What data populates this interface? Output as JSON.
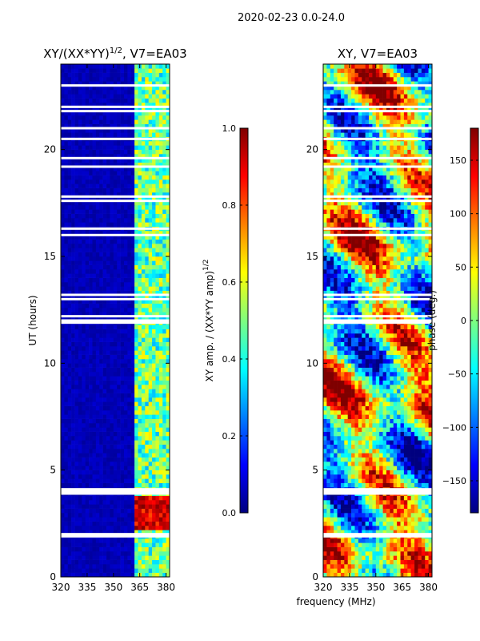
{
  "figure": {
    "suptitle": "2020-02-23 0.0-24.0",
    "xlabel_shared": "frequency (MHz)"
  },
  "colormap": [
    "#00007f",
    "#0000ff",
    "#007fff",
    "#00ffff",
    "#7fff7f",
    "#ffff00",
    "#ff7f00",
    "#ff0000",
    "#7f0000"
  ],
  "chart_data": [
    {
      "type": "heatmap",
      "title": "XY/(XX*YY)^{1/2}, V7=EA03",
      "title_prefix": "XY/(XX*YY)",
      "title_sup": "1/2",
      "title_suffix": ", V7=EA03",
      "xlabel": "",
      "ylabel": "UT (hours)",
      "xlim": [
        320,
        382
      ],
      "ylim": [
        0,
        24
      ],
      "xticks": [
        320,
        335,
        350,
        365,
        380
      ],
      "yticks": [
        0,
        5,
        10,
        15,
        20
      ],
      "colorbar": {
        "label": "XY amp. / (XX*YY amp)^{1/2}",
        "label_prefix": "XY amp. / (XX*YY amp)",
        "label_sup": "1/2",
        "range": [
          0.0,
          1.0
        ],
        "ticks": [
          "0.0",
          "0.2",
          "0.4",
          "0.6",
          "0.8",
          "1.0"
        ]
      },
      "gap_hours": [
        1.9,
        2.0,
        3.9,
        4.0,
        4.1,
        11.9,
        12.0,
        12.2,
        13.0,
        13.2,
        16.0,
        16.3,
        17.6,
        17.8,
        19.2,
        19.6,
        20.5,
        21.0,
        21.8,
        22.0,
        23.0
      ],
      "bright_channels_MHz": [
        363,
        366,
        369,
        372,
        375,
        378,
        380
      ],
      "high_value_band_hours": [
        2.3,
        3.8
      ]
    },
    {
      "type": "heatmap",
      "title": "XY, V7=EA03",
      "xlabel": "",
      "ylabel": "",
      "xlim": [
        320,
        382
      ],
      "ylim": [
        0,
        24
      ],
      "xticks": [
        320,
        335,
        350,
        365,
        380
      ],
      "yticks": [
        0,
        5,
        10,
        15,
        20
      ],
      "colorbar": {
        "label": "phase (deg.)",
        "range": [
          -180,
          180
        ],
        "ticks": [
          "150",
          "100",
          "50",
          "0",
          "−50",
          "−100",
          "−150"
        ],
        "tick_values": [
          150,
          100,
          50,
          0,
          -50,
          -100,
          -150
        ]
      },
      "gap_hours": [
        1.9,
        2.0,
        3.9,
        4.0,
        4.1,
        11.9,
        12.0,
        12.2,
        13.0,
        13.2,
        16.0,
        16.3,
        17.6,
        17.8,
        19.2,
        19.6,
        20.5,
        21.0,
        21.8,
        22.0,
        23.0
      ]
    }
  ]
}
